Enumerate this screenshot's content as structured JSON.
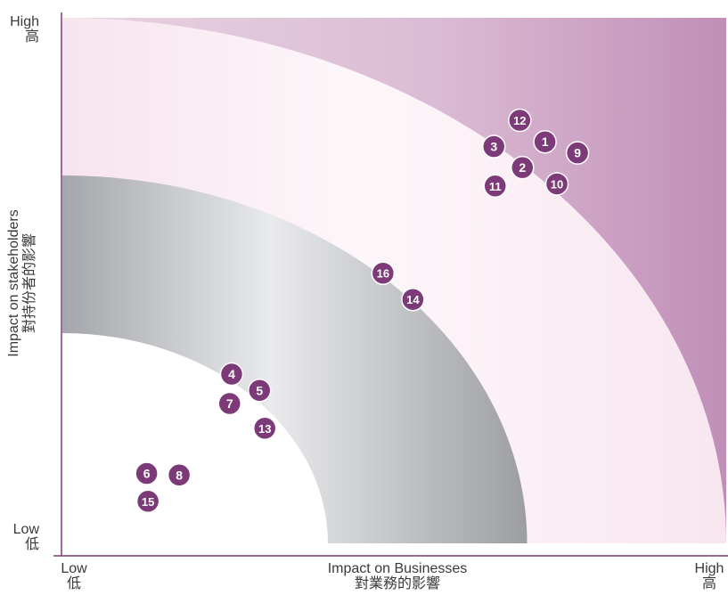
{
  "chart_data": {
    "type": "scatter",
    "xlabel": "Impact on Businesses",
    "xlabel_zh": "對業務的影響",
    "ylabel": "Impact on stakeholders",
    "ylabel_zh": "對持份者的影響",
    "x_low": "Low",
    "x_low_zh": "低",
    "x_high": "High",
    "x_high_zh": "高",
    "y_low": "Low",
    "y_low_zh": "低",
    "y_high": "High",
    "y_high_zh": "高",
    "xlim": [
      0,
      100
    ],
    "ylim": [
      0,
      100
    ],
    "bands": [
      {
        "name": "low",
        "outer_radius": 40
      },
      {
        "name": "medium",
        "outer_radius": 70
      },
      {
        "name": "high",
        "outer_radius": 100
      }
    ],
    "points": [
      {
        "label": "1",
        "x": 72.7,
        "y": 76.4
      },
      {
        "label": "2",
        "x": 69.3,
        "y": 71.5
      },
      {
        "label": "3",
        "x": 65.0,
        "y": 75.5
      },
      {
        "label": "4",
        "x": 25.5,
        "y": 32.2
      },
      {
        "label": "5",
        "x": 29.7,
        "y": 29.1
      },
      {
        "label": "6",
        "x": 12.7,
        "y": 13.3
      },
      {
        "label": "7",
        "x": 25.2,
        "y": 26.6
      },
      {
        "label": "8",
        "x": 17.6,
        "y": 13.0
      },
      {
        "label": "9",
        "x": 77.6,
        "y": 74.3
      },
      {
        "label": "10",
        "x": 74.5,
        "y": 68.4
      },
      {
        "label": "11",
        "x": 65.2,
        "y": 68.0
      },
      {
        "label": "12",
        "x": 68.9,
        "y": 80.5
      },
      {
        "label": "13",
        "x": 30.5,
        "y": 21.9
      },
      {
        "label": "14",
        "x": 52.8,
        "y": 46.4
      },
      {
        "label": "15",
        "x": 12.9,
        "y": 8.0
      },
      {
        "label": "16",
        "x": 48.3,
        "y": 51.4
      }
    ],
    "colors": {
      "marker": "#7d3a78",
      "marker_text": "#ffffff",
      "axis": "#7d3a78",
      "band_low": "#ffffff",
      "band_medium_light": "#eef0f2",
      "band_medium_dark": "#9c9ea3",
      "band_high_light": "#fdf4f8",
      "band_high_mid": "#f8e6ef",
      "outer_light": "#e8d3e2",
      "outer_dark": "#c08fb8"
    }
  }
}
